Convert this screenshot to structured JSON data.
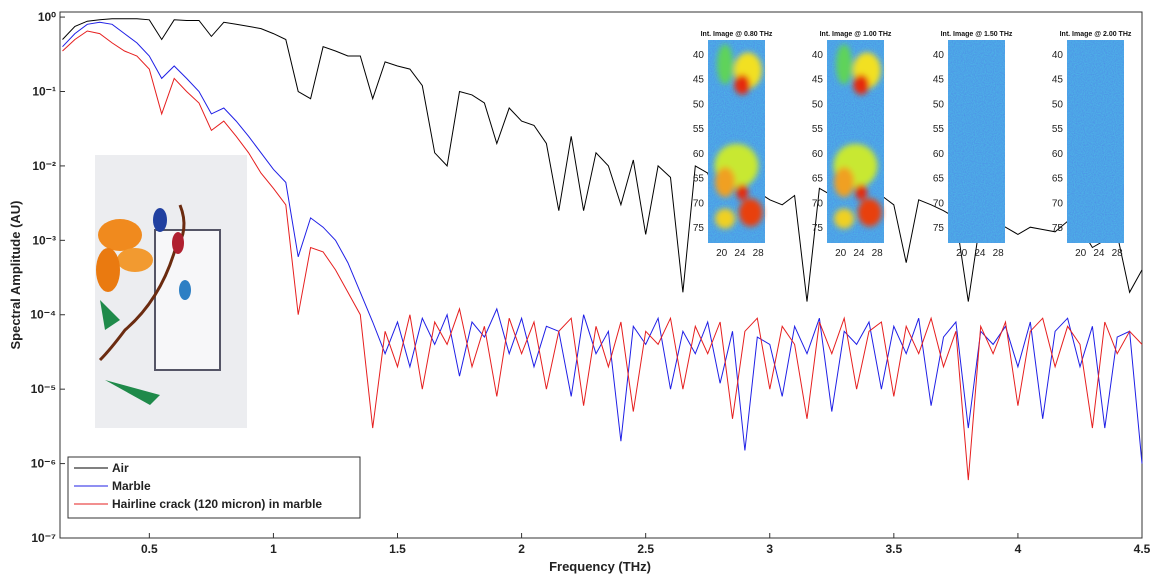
{
  "chart_data": {
    "type": "line",
    "xlabel": "Frequency (THz)",
    "ylabel": "Spectral Amplitude (AU)",
    "log_y": true,
    "legend": "lower left",
    "xlim": [
      0.14,
      4.5
    ],
    "ylim": [
      1e-07,
      1.17
    ],
    "xticks": [
      0.5,
      1,
      1.5,
      2,
      2.5,
      3,
      3.5,
      4,
      4.5
    ],
    "yticks": [
      {
        "value": 1,
        "label": "10⁰"
      },
      {
        "value": 0.1,
        "label": "10⁻¹"
      },
      {
        "value": 0.01,
        "label": "10⁻²"
      },
      {
        "value": 0.001,
        "label": "10⁻³"
      },
      {
        "value": 0.0001,
        "label": "10⁻⁴"
      },
      {
        "value": 1e-05,
        "label": "10⁻⁵"
      },
      {
        "value": 1e-06,
        "label": "10⁻⁶"
      },
      {
        "value": 1e-07,
        "label": "10⁻⁷"
      }
    ],
    "x": [
      0.15,
      0.2,
      0.25,
      0.3,
      0.35,
      0.4,
      0.45,
      0.5,
      0.55,
      0.6,
      0.65,
      0.7,
      0.75,
      0.8,
      0.85,
      0.9,
      0.95,
      1,
      1.05,
      1.1,
      1.15,
      1.2,
      1.25,
      1.3,
      1.35,
      1.4,
      1.45,
      1.5,
      1.55,
      1.6,
      1.65,
      1.7,
      1.75,
      1.8,
      1.85,
      1.9,
      1.95,
      2,
      2.05,
      2.1,
      2.15,
      2.2,
      2.25,
      2.3,
      2.35,
      2.4,
      2.45,
      2.5,
      2.55,
      2.6,
      2.65,
      2.7,
      2.75,
      2.8,
      2.85,
      2.9,
      2.95,
      3,
      3.05,
      3.1,
      3.15,
      3.2,
      3.25,
      3.3,
      3.35,
      3.4,
      3.45,
      3.5,
      3.55,
      3.6,
      3.65,
      3.7,
      3.75,
      3.8,
      3.85,
      3.9,
      3.95,
      4,
      4.05,
      4.1,
      4.15,
      4.2,
      4.25,
      4.3,
      4.35,
      4.4,
      4.45,
      4.5
    ],
    "series": [
      {
        "name": "Air",
        "color": "#000000",
        "values": [
          0.5,
          0.75,
          0.88,
          0.92,
          0.95,
          0.95,
          0.95,
          0.92,
          0.5,
          0.92,
          0.9,
          0.9,
          0.55,
          0.85,
          0.8,
          0.75,
          0.7,
          0.6,
          0.5,
          0.1,
          0.08,
          0.4,
          0.35,
          0.3,
          0.3,
          0.08,
          0.25,
          0.22,
          0.2,
          0.12,
          0.015,
          0.01,
          0.1,
          0.09,
          0.07,
          0.02,
          0.06,
          0.04,
          0.035,
          0.02,
          0.0025,
          0.025,
          0.0025,
          0.015,
          0.01,
          0.003,
          0.012,
          0.0012,
          0.01,
          0.007,
          0.0002,
          0.01,
          0.008,
          0.0025,
          0.006,
          0.004,
          0.0045,
          0.0035,
          0.003,
          0.004,
          0.00015,
          0.005,
          0.004,
          0.0015,
          0.004,
          0.003,
          0.004,
          0.003,
          0.0005,
          0.0035,
          0.003,
          0.0025,
          0.002,
          0.00015,
          0.002,
          0.0018,
          0.0015,
          0.0012,
          0.0015,
          0.0014,
          0.0013,
          0.0018,
          0.0015,
          0.0008,
          0.001,
          0.0012,
          0.0002,
          0.0004
        ]
      },
      {
        "name": "Marble",
        "color": "#1f1fe6",
        "values": [
          0.4,
          0.6,
          0.8,
          0.85,
          0.8,
          0.6,
          0.45,
          0.3,
          0.15,
          0.22,
          0.15,
          0.1,
          0.05,
          0.06,
          0.04,
          0.025,
          0.015,
          0.009,
          0.006,
          0.0006,
          0.002,
          0.0015,
          0.001,
          0.0005,
          0.0002,
          8e-05,
          3e-05,
          8e-05,
          2e-05,
          9e-05,
          4e-05,
          0.0001,
          1.5e-05,
          8e-05,
          5e-05,
          0.00012,
          3e-05,
          9e-05,
          2e-05,
          7e-05,
          6e-05,
          8e-06,
          0.0001,
          3e-05,
          6e-05,
          2e-06,
          7e-05,
          4e-05,
          9e-05,
          1e-05,
          6e-05,
          3e-05,
          8e-05,
          1.2e-05,
          6e-05,
          1.5e-06,
          5e-05,
          4e-05,
          8e-06,
          7e-05,
          3e-05,
          9e-05,
          5e-06,
          6e-05,
          4e-05,
          8e-05,
          1e-05,
          7e-05,
          3e-05,
          9e-05,
          6e-06,
          5e-05,
          8e-05,
          3e-06,
          6e-05,
          4e-05,
          7e-05,
          2e-05,
          8e-05,
          4e-06,
          6e-05,
          9e-05,
          2e-05,
          7e-05,
          3e-06,
          5e-05,
          6e-05,
          1e-06
        ]
      },
      {
        "name": "Hairline crack (120 micron) in marble",
        "color": "#e61f1f",
        "values": [
          0.35,
          0.5,
          0.65,
          0.6,
          0.45,
          0.35,
          0.3,
          0.2,
          0.05,
          0.15,
          0.1,
          0.07,
          0.03,
          0.04,
          0.025,
          0.015,
          0.008,
          0.005,
          0.003,
          0.0001,
          0.0008,
          0.0007,
          0.0004,
          0.0002,
          0.0001,
          3e-06,
          6e-05,
          2e-05,
          0.0001,
          1e-05,
          8e-05,
          4e-05,
          0.00012,
          2e-05,
          7e-05,
          8e-06,
          9e-05,
          3e-05,
          8e-05,
          1e-05,
          6e-05,
          9e-05,
          6e-06,
          7e-05,
          2e-05,
          8e-05,
          5e-06,
          6e-05,
          4e-05,
          9e-05,
          1e-05,
          7e-05,
          3e-05,
          8e-05,
          4e-06,
          6e-05,
          9e-05,
          1e-05,
          7e-05,
          4e-05,
          4e-06,
          8e-05,
          3e-05,
          9e-05,
          1e-05,
          6e-05,
          8e-05,
          8e-06,
          7e-05,
          3e-05,
          9e-05,
          2e-05,
          6e-05,
          6e-07,
          7e-05,
          3e-05,
          8e-05,
          6e-06,
          6e-05,
          9e-05,
          2e-05,
          7e-05,
          4e-05,
          3e-06,
          8e-05,
          3e-05,
          6e-05,
          4e-05
        ]
      }
    ]
  },
  "insets": [
    {
      "title": "Int. Image @ 0.80 THz",
      "yticks": [
        40,
        45,
        50,
        55,
        60,
        65,
        70,
        75
      ],
      "xticks": [
        20,
        24,
        28
      ]
    },
    {
      "title": "Int. Image @ 1.00 THz",
      "yticks": [
        40,
        45,
        50,
        55,
        60,
        65,
        70,
        75
      ],
      "xticks": [
        20,
        24,
        28
      ]
    },
    {
      "title": "Int. Image @ 1.50 THz",
      "yticks": [
        40,
        45,
        50,
        55,
        60,
        65,
        70,
        75
      ],
      "xticks": [
        20,
        24,
        28
      ]
    },
    {
      "title": "Int. Image @ 2.00 THz",
      "yticks": [
        40,
        45,
        50,
        55,
        60,
        65,
        70,
        75
      ],
      "xticks": [
        20,
        24,
        28
      ]
    }
  ]
}
